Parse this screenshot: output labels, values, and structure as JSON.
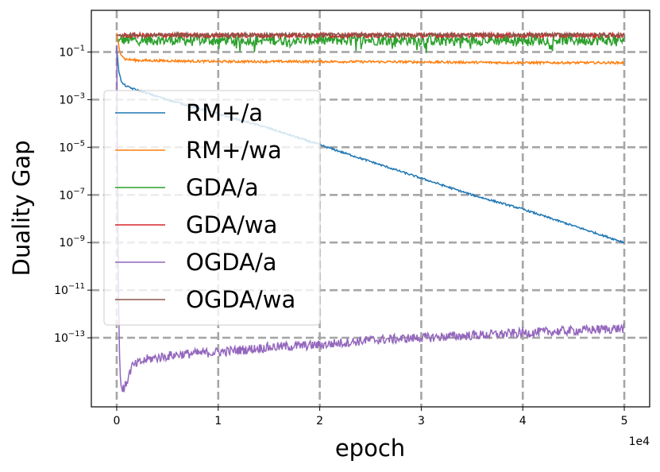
{
  "chart_data": {
    "type": "line",
    "title": "",
    "xlabel": "epoch",
    "ylabel": "Duality Gap",
    "x_offset_label": "1e4",
    "xlim": [
      -2500,
      52500
    ],
    "ylim_log10": [
      -15.9,
      0.75
    ],
    "yscale": "log",
    "grid": true,
    "legend_position": "center-left",
    "x_ticks": [
      {
        "value": 0,
        "label": "0"
      },
      {
        "value": 10000,
        "label": "1"
      },
      {
        "value": 20000,
        "label": "2"
      },
      {
        "value": 30000,
        "label": "3"
      },
      {
        "value": 40000,
        "label": "4"
      },
      {
        "value": 50000,
        "label": "5"
      }
    ],
    "y_ticks": [
      {
        "exp": -1,
        "base": "10",
        "sup": "−1"
      },
      {
        "exp": -3,
        "base": "10",
        "sup": "−3"
      },
      {
        "exp": -5,
        "base": "10",
        "sup": "−5"
      },
      {
        "exp": -7,
        "base": "10",
        "sup": "−7"
      },
      {
        "exp": -9,
        "base": "10",
        "sup": "−9"
      },
      {
        "exp": -11,
        "base": "10",
        "sup": "−11"
      },
      {
        "exp": -13,
        "base": "10",
        "sup": "−13"
      }
    ],
    "series": [
      {
        "name": "RM+/a",
        "color": "#1f77b4",
        "x": [
          0,
          200,
          500,
          1000,
          2000,
          5000,
          10000,
          15000,
          20000,
          25000,
          30000,
          35000,
          40000,
          45000,
          50000
        ],
        "log10y": [
          -0.8,
          -1.8,
          -2.3,
          -2.45,
          -2.6,
          -3.0,
          -3.6,
          -4.2,
          -4.9,
          -5.6,
          -6.3,
          -7.0,
          -7.6,
          -8.3,
          -9.0
        ],
        "noise": 0.04
      },
      {
        "name": "RM+/wa",
        "color": "#ff7f0e",
        "x": [
          0,
          300,
          800,
          2000,
          10000,
          20000,
          30000,
          40000,
          50000
        ],
        "log10y": [
          -0.2,
          -1.0,
          -1.3,
          -1.35,
          -1.4,
          -1.4,
          -1.42,
          -1.45,
          -1.45
        ],
        "noise": 0.05
      },
      {
        "name": "GDA/a",
        "color": "#2ca02c",
        "x": [
          0,
          50000
        ],
        "log10y": [
          -0.5,
          -0.5
        ],
        "noise": 0.22
      },
      {
        "name": "GDA/wa",
        "color": "#d62728",
        "x": [
          0,
          50000
        ],
        "log10y": [
          -0.3,
          -0.3
        ],
        "noise": 0.1
      },
      {
        "name": "OGDA/a",
        "color": "#9467bd",
        "x": [
          0,
          120,
          250,
          400,
          700,
          1500,
          3000,
          6000,
          10000,
          15000,
          20000,
          25000,
          30000,
          35000,
          40000,
          45000,
          50000
        ],
        "log10y": [
          -0.7,
          -9.0,
          -13.5,
          -15.0,
          -15.2,
          -14.2,
          -13.9,
          -13.7,
          -13.6,
          -13.4,
          -13.3,
          -13.1,
          -13.0,
          -12.9,
          -12.8,
          -12.7,
          -12.6
        ],
        "noise": 0.2
      },
      {
        "name": "OGDA/wa",
        "color": "#8c564b",
        "x": [
          0,
          50000
        ],
        "log10y": [
          -0.28,
          -0.28
        ],
        "noise": 0.08
      }
    ]
  }
}
